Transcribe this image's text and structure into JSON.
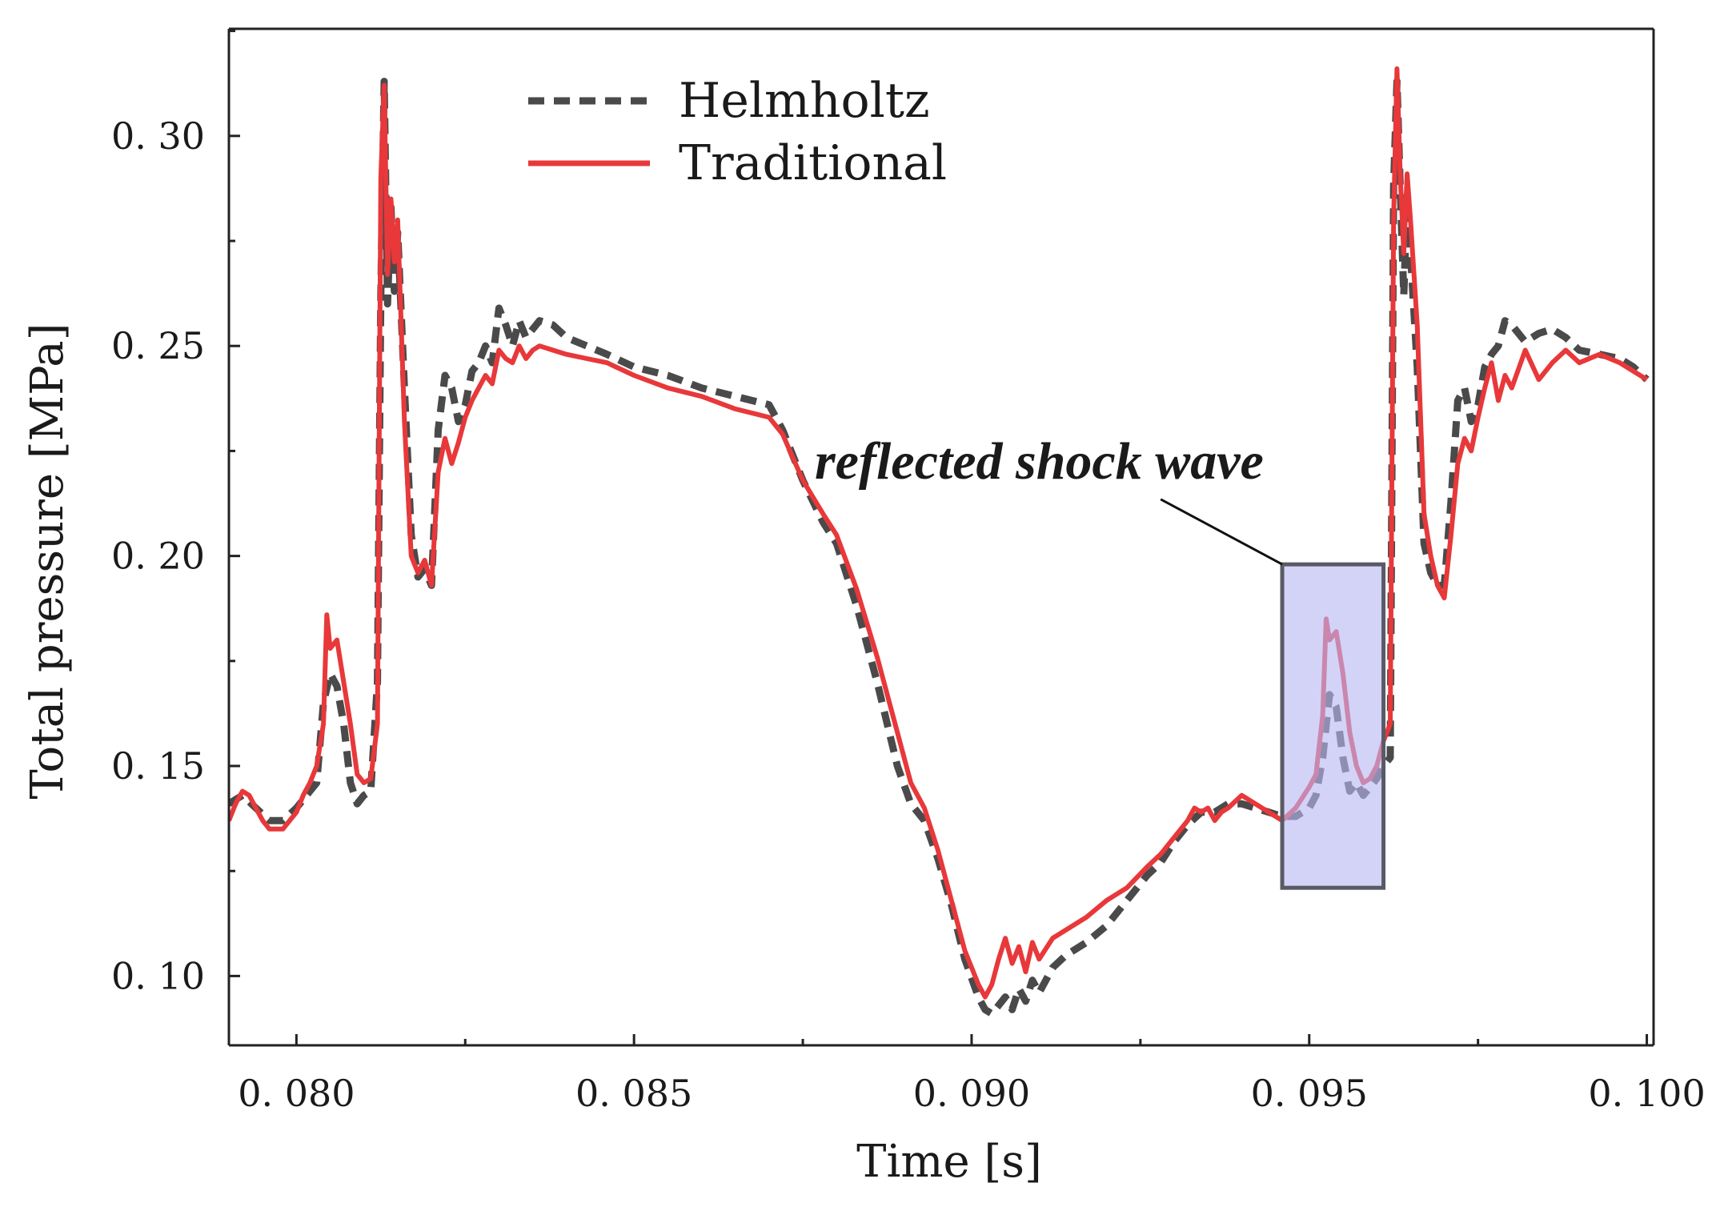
{
  "chart_data": {
    "type": "line",
    "title": "",
    "xlabel": "Time [s]",
    "ylabel": "Total pressure [MPa]",
    "xlim": [
      0.079,
      0.1001
    ],
    "ylim": [
      0.0835,
      0.3255
    ],
    "x_ticks": [
      0.08,
      0.085,
      0.09,
      0.095,
      0.1
    ],
    "x_tick_labels": [
      "0. 080",
      "0. 085",
      "0. 090",
      "0. 095",
      "0. 100"
    ],
    "y_ticks": [
      0.1,
      0.15,
      0.2,
      0.25,
      0.3
    ],
    "y_tick_labels": [
      "0. 10",
      "0. 15",
      "0. 20",
      "0. 25",
      "0. 30"
    ],
    "grid": false,
    "legend_position": "top-left",
    "series": [
      {
        "name": "Helmholtz",
        "style": "dashed",
        "color": "#4a4a4a",
        "points": [
          [
            0.079,
            0.141
          ],
          [
            0.0792,
            0.143
          ],
          [
            0.0794,
            0.14
          ],
          [
            0.0796,
            0.137
          ],
          [
            0.0798,
            0.137
          ],
          [
            0.08,
            0.14
          ],
          [
            0.0802,
            0.144
          ],
          [
            0.0803,
            0.146
          ],
          [
            0.0804,
            0.165
          ],
          [
            0.0805,
            0.172
          ],
          [
            0.0806,
            0.169
          ],
          [
            0.0807,
            0.16
          ],
          [
            0.0808,
            0.146
          ],
          [
            0.0809,
            0.141
          ],
          [
            0.081,
            0.143
          ],
          [
            0.0811,
            0.144
          ],
          [
            0.0812,
            0.17
          ],
          [
            0.08125,
            0.262
          ],
          [
            0.0813,
            0.313
          ],
          [
            0.08135,
            0.26
          ],
          [
            0.0814,
            0.283
          ],
          [
            0.08145,
            0.263
          ],
          [
            0.0815,
            0.277
          ],
          [
            0.0816,
            0.24
          ],
          [
            0.0817,
            0.205
          ],
          [
            0.0818,
            0.195
          ],
          [
            0.0819,
            0.197
          ],
          [
            0.082,
            0.193
          ],
          [
            0.0821,
            0.23
          ],
          [
            0.0822,
            0.243
          ],
          [
            0.0823,
            0.24
          ],
          [
            0.0824,
            0.232
          ],
          [
            0.0825,
            0.236
          ],
          [
            0.0826,
            0.244
          ],
          [
            0.0827,
            0.246
          ],
          [
            0.0828,
            0.25
          ],
          [
            0.0829,
            0.246
          ],
          [
            0.083,
            0.259
          ],
          [
            0.0831,
            0.255
          ],
          [
            0.0832,
            0.25
          ],
          [
            0.0833,
            0.256
          ],
          [
            0.0834,
            0.252
          ],
          [
            0.0835,
            0.254
          ],
          [
            0.0836,
            0.256
          ],
          [
            0.0838,
            0.255
          ],
          [
            0.084,
            0.252
          ],
          [
            0.0843,
            0.25
          ],
          [
            0.0846,
            0.248
          ],
          [
            0.085,
            0.245
          ],
          [
            0.0855,
            0.243
          ],
          [
            0.086,
            0.24
          ],
          [
            0.0865,
            0.238
          ],
          [
            0.087,
            0.236
          ],
          [
            0.0872,
            0.23
          ],
          [
            0.0875,
            0.218
          ],
          [
            0.0878,
            0.208
          ],
          [
            0.088,
            0.203
          ],
          [
            0.0883,
            0.188
          ],
          [
            0.0886,
            0.17
          ],
          [
            0.0889,
            0.15
          ],
          [
            0.0891,
            0.141
          ],
          [
            0.0893,
            0.137
          ],
          [
            0.0895,
            0.128
          ],
          [
            0.0897,
            0.117
          ],
          [
            0.0899,
            0.104
          ],
          [
            0.0901,
            0.095
          ],
          [
            0.0902,
            0.092
          ],
          [
            0.0903,
            0.091
          ],
          [
            0.0904,
            0.093
          ],
          [
            0.0905,
            0.095
          ],
          [
            0.0906,
            0.092
          ],
          [
            0.0907,
            0.097
          ],
          [
            0.0908,
            0.094
          ],
          [
            0.0909,
            0.099
          ],
          [
            0.091,
            0.096
          ],
          [
            0.0912,
            0.102
          ],
          [
            0.0914,
            0.105
          ],
          [
            0.0917,
            0.108
          ],
          [
            0.092,
            0.112
          ],
          [
            0.0923,
            0.118
          ],
          [
            0.0926,
            0.124
          ],
          [
            0.0928,
            0.127
          ],
          [
            0.093,
            0.132
          ],
          [
            0.0932,
            0.136
          ],
          [
            0.0934,
            0.139
          ],
          [
            0.0936,
            0.139
          ],
          [
            0.0938,
            0.141
          ],
          [
            0.094,
            0.141
          ],
          [
            0.0942,
            0.14
          ],
          [
            0.0944,
            0.139
          ],
          [
            0.0946,
            0.138
          ],
          [
            0.0948,
            0.138
          ],
          [
            0.095,
            0.14
          ],
          [
            0.0951,
            0.143
          ],
          [
            0.0952,
            0.152
          ],
          [
            0.0953,
            0.167
          ],
          [
            0.0954,
            0.164
          ],
          [
            0.0955,
            0.152
          ],
          [
            0.0956,
            0.144
          ],
          [
            0.0957,
            0.146
          ],
          [
            0.0958,
            0.143
          ],
          [
            0.0959,
            0.145
          ],
          [
            0.096,
            0.147
          ],
          [
            0.0961,
            0.15
          ],
          [
            0.0962,
            0.152
          ],
          [
            0.09625,
            0.288
          ],
          [
            0.0963,
            0.313
          ],
          [
            0.09635,
            0.287
          ],
          [
            0.0964,
            0.262
          ],
          [
            0.09645,
            0.285
          ],
          [
            0.0965,
            0.272
          ],
          [
            0.0966,
            0.245
          ],
          [
            0.0967,
            0.203
          ],
          [
            0.0968,
            0.196
          ],
          [
            0.0969,
            0.193
          ],
          [
            0.097,
            0.193
          ],
          [
            0.0971,
            0.213
          ],
          [
            0.0972,
            0.237
          ],
          [
            0.0973,
            0.24
          ],
          [
            0.0974,
            0.232
          ],
          [
            0.0975,
            0.236
          ],
          [
            0.0976,
            0.245
          ],
          [
            0.0977,
            0.248
          ],
          [
            0.0978,
            0.25
          ],
          [
            0.0979,
            0.256
          ],
          [
            0.098,
            0.255
          ],
          [
            0.0982,
            0.251
          ],
          [
            0.0984,
            0.253
          ],
          [
            0.0986,
            0.254
          ],
          [
            0.0988,
            0.252
          ],
          [
            0.099,
            0.249
          ],
          [
            0.0993,
            0.248
          ],
          [
            0.0996,
            0.247
          ],
          [
            0.0998,
            0.245
          ],
          [
            0.1,
            0.242
          ]
        ]
      },
      {
        "name": "Traditional",
        "style": "solid",
        "color": "#e8383a",
        "points": [
          [
            0.079,
            0.137
          ],
          [
            0.0791,
            0.141
          ],
          [
            0.0792,
            0.144
          ],
          [
            0.0793,
            0.143
          ],
          [
            0.0794,
            0.14
          ],
          [
            0.0795,
            0.137
          ],
          [
            0.0796,
            0.135
          ],
          [
            0.0798,
            0.135
          ],
          [
            0.0799,
            0.137
          ],
          [
            0.08,
            0.139
          ],
          [
            0.0801,
            0.143
          ],
          [
            0.0802,
            0.146
          ],
          [
            0.0803,
            0.15
          ],
          [
            0.0804,
            0.16
          ],
          [
            0.08045,
            0.186
          ],
          [
            0.0805,
            0.178
          ],
          [
            0.0806,
            0.18
          ],
          [
            0.0807,
            0.17
          ],
          [
            0.0808,
            0.16
          ],
          [
            0.0809,
            0.148
          ],
          [
            0.081,
            0.146
          ],
          [
            0.0811,
            0.147
          ],
          [
            0.0812,
            0.16
          ],
          [
            0.08125,
            0.29
          ],
          [
            0.0813,
            0.312
          ],
          [
            0.08135,
            0.267
          ],
          [
            0.0814,
            0.285
          ],
          [
            0.08145,
            0.27
          ],
          [
            0.0815,
            0.28
          ],
          [
            0.0816,
            0.232
          ],
          [
            0.0817,
            0.2
          ],
          [
            0.0818,
            0.196
          ],
          [
            0.0819,
            0.199
          ],
          [
            0.082,
            0.193
          ],
          [
            0.0821,
            0.22
          ],
          [
            0.0822,
            0.228
          ],
          [
            0.0823,
            0.222
          ],
          [
            0.0824,
            0.227
          ],
          [
            0.0825,
            0.233
          ],
          [
            0.0826,
            0.237
          ],
          [
            0.0827,
            0.24
          ],
          [
            0.0828,
            0.243
          ],
          [
            0.0829,
            0.241
          ],
          [
            0.083,
            0.249
          ],
          [
            0.0831,
            0.247
          ],
          [
            0.0832,
            0.246
          ],
          [
            0.0833,
            0.25
          ],
          [
            0.0834,
            0.247
          ],
          [
            0.0835,
            0.249
          ],
          [
            0.0836,
            0.25
          ],
          [
            0.0838,
            0.249
          ],
          [
            0.084,
            0.248
          ],
          [
            0.0843,
            0.247
          ],
          [
            0.0846,
            0.246
          ],
          [
            0.085,
            0.243
          ],
          [
            0.0855,
            0.24
          ],
          [
            0.086,
            0.238
          ],
          [
            0.0865,
            0.235
          ],
          [
            0.087,
            0.233
          ],
          [
            0.0872,
            0.229
          ],
          [
            0.0875,
            0.218
          ],
          [
            0.0878,
            0.21
          ],
          [
            0.088,
            0.205
          ],
          [
            0.0883,
            0.192
          ],
          [
            0.0886,
            0.176
          ],
          [
            0.0889,
            0.158
          ],
          [
            0.0891,
            0.146
          ],
          [
            0.0893,
            0.14
          ],
          [
            0.0895,
            0.13
          ],
          [
            0.0897,
            0.118
          ],
          [
            0.0899,
            0.106
          ],
          [
            0.0901,
            0.098
          ],
          [
            0.0902,
            0.095
          ],
          [
            0.0903,
            0.098
          ],
          [
            0.0904,
            0.104
          ],
          [
            0.0905,
            0.109
          ],
          [
            0.0906,
            0.103
          ],
          [
            0.0907,
            0.107
          ],
          [
            0.0908,
            0.101
          ],
          [
            0.0909,
            0.108
          ],
          [
            0.091,
            0.104
          ],
          [
            0.0912,
            0.109
          ],
          [
            0.0914,
            0.111
          ],
          [
            0.0917,
            0.114
          ],
          [
            0.092,
            0.118
          ],
          [
            0.0923,
            0.121
          ],
          [
            0.0926,
            0.126
          ],
          [
            0.0928,
            0.129
          ],
          [
            0.093,
            0.133
          ],
          [
            0.0932,
            0.137
          ],
          [
            0.0933,
            0.14
          ],
          [
            0.0934,
            0.139
          ],
          [
            0.0935,
            0.14
          ],
          [
            0.0936,
            0.137
          ],
          [
            0.0937,
            0.139
          ],
          [
            0.0938,
            0.14
          ],
          [
            0.094,
            0.143
          ],
          [
            0.0942,
            0.141
          ],
          [
            0.0944,
            0.139
          ],
          [
            0.0946,
            0.137
          ],
          [
            0.0948,
            0.14
          ],
          [
            0.095,
            0.145
          ],
          [
            0.0951,
            0.148
          ],
          [
            0.0952,
            0.162
          ],
          [
            0.09525,
            0.185
          ],
          [
            0.0953,
            0.18
          ],
          [
            0.0954,
            0.182
          ],
          [
            0.0955,
            0.172
          ],
          [
            0.0956,
            0.158
          ],
          [
            0.0957,
            0.15
          ],
          [
            0.0958,
            0.146
          ],
          [
            0.0959,
            0.147
          ],
          [
            0.096,
            0.15
          ],
          [
            0.0961,
            0.156
          ],
          [
            0.0962,
            0.16
          ],
          [
            0.09625,
            0.28
          ],
          [
            0.0963,
            0.316
          ],
          [
            0.09635,
            0.29
          ],
          [
            0.0964,
            0.272
          ],
          [
            0.09645,
            0.291
          ],
          [
            0.0965,
            0.28
          ],
          [
            0.0966,
            0.255
          ],
          [
            0.0967,
            0.21
          ],
          [
            0.0968,
            0.2
          ],
          [
            0.0969,
            0.193
          ],
          [
            0.097,
            0.19
          ],
          [
            0.0971,
            0.205
          ],
          [
            0.0972,
            0.222
          ],
          [
            0.0973,
            0.228
          ],
          [
            0.0974,
            0.225
          ],
          [
            0.0975,
            0.233
          ],
          [
            0.0976,
            0.24
          ],
          [
            0.0977,
            0.246
          ],
          [
            0.0978,
            0.237
          ],
          [
            0.0979,
            0.243
          ],
          [
            0.098,
            0.24
          ],
          [
            0.0982,
            0.249
          ],
          [
            0.0984,
            0.242
          ],
          [
            0.0986,
            0.246
          ],
          [
            0.0988,
            0.249
          ],
          [
            0.099,
            0.246
          ],
          [
            0.0993,
            0.248
          ],
          [
            0.0996,
            0.246
          ],
          [
            0.0998,
            0.244
          ],
          [
            0.1,
            0.242
          ]
        ]
      }
    ],
    "annotation": {
      "text": "reflected shock wave",
      "box_x": [
        0.0946,
        0.0961
      ],
      "box_y": [
        0.121,
        0.198
      ],
      "pointer_from": [
        0.0928,
        0.2135
      ],
      "pointer_to": [
        0.0946,
        0.198
      ],
      "box_fill": "#b8b8f4",
      "box_stroke": "#5a5a66"
    }
  }
}
